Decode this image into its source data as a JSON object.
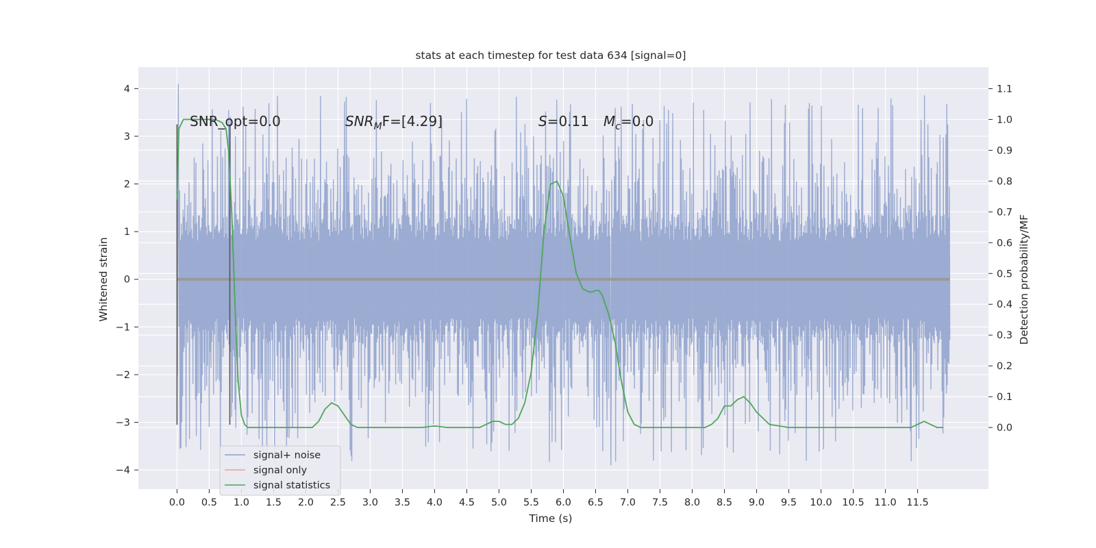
{
  "chart_data": {
    "type": "line",
    "title": "stats at each timestep for test data 634 [signal=0]",
    "xlabel": "Time (s)",
    "ylabel_left": "Whitened strain",
    "ylabel_right": "Detection probability/MF",
    "x_ticks": [
      "0.0",
      "0.5",
      "1.0",
      "1.5",
      "2.0",
      "2.5",
      "3.0",
      "3.5",
      "4.0",
      "4.5",
      "5.0",
      "5.5",
      "6.0",
      "6.5",
      "7.0",
      "7.5",
      "8.0",
      "8.5",
      "9.0",
      "9.5",
      "10.0",
      "10.5",
      "11.0",
      "11.5"
    ],
    "y_left_ticks": [
      "4",
      "3",
      "2",
      "1",
      "0",
      "−1",
      "−2",
      "−3",
      "−4"
    ],
    "y_right_ticks": [
      "1.1",
      "1.0",
      "0.9",
      "0.8",
      "0.7",
      "0.6",
      "0.5",
      "0.4",
      "0.3",
      "0.2",
      "0.1",
      "0.0"
    ],
    "xlim": [
      -0.6,
      12.6
    ],
    "ylim_left": [
      -4.4,
      4.45
    ],
    "ylim_right": [
      -0.2,
      1.17
    ],
    "grid": true,
    "legend_position": "lower-left",
    "legend": [
      "signal+ noise",
      "signal only",
      "signal statistics"
    ],
    "colors": {
      "axes_bg": "#eaeaf2",
      "grid": "#ffffff",
      "noise": "#8da0cb",
      "signal_only": "#e8a38a",
      "statistics": "#4ea55a",
      "markers": "#555555"
    },
    "annotations": {
      "snr_opt": "SNR_opt=0.0",
      "snr_mf_sym": "SNR",
      "snr_mf_sub": "M",
      "snr_mf_rest": "F=[4.29]",
      "s_sym": "S",
      "s_rest": "=0.11",
      "mc_sym": "M",
      "mc_sub": "c",
      "mc_rest": "=0.0"
    },
    "markers_x": [
      0.0,
      0.82
    ],
    "signal_only": {
      "x": [
        0.0,
        12.0
      ],
      "y": [
        0.0,
        0.0
      ]
    },
    "signal_noise": {
      "t_start": 0.0,
      "t_end": 12.0,
      "core_amplitude": 1.35,
      "typical_peak": 2.6,
      "max": 4.1,
      "min": -3.9
    },
    "detection_statistics": {
      "x": [
        0.0,
        0.03,
        0.1,
        0.2,
        0.3,
        0.4,
        0.5,
        0.6,
        0.7,
        0.76,
        0.8,
        0.85,
        0.9,
        0.95,
        1.0,
        1.05,
        1.1,
        1.2,
        1.4,
        1.6,
        1.8,
        2.0,
        2.1,
        2.2,
        2.3,
        2.4,
        2.5,
        2.6,
        2.7,
        2.8,
        3.0,
        3.5,
        3.8,
        4.0,
        4.2,
        4.5,
        4.7,
        4.8,
        4.9,
        5.0,
        5.1,
        5.2,
        5.3,
        5.4,
        5.5,
        5.6,
        5.7,
        5.8,
        5.9,
        6.0,
        6.1,
        6.2,
        6.3,
        6.4,
        6.45,
        6.5,
        6.55,
        6.6,
        6.7,
        6.8,
        6.9,
        7.0,
        7.1,
        7.2,
        7.5,
        8.0,
        8.2,
        8.3,
        8.4,
        8.5,
        8.55,
        8.6,
        8.7,
        8.8,
        8.9,
        9.0,
        9.2,
        9.5,
        10.0,
        10.5,
        11.0,
        11.4,
        11.5,
        11.6,
        11.7,
        11.8,
        11.9
      ],
      "y": [
        0.74,
        0.97,
        1.0,
        1.0,
        1.0,
        1.0,
        1.0,
        1.0,
        0.99,
        0.97,
        0.9,
        0.7,
        0.4,
        0.15,
        0.04,
        0.01,
        0.0,
        0.0,
        0.0,
        0.0,
        0.0,
        0.0,
        0.0,
        0.02,
        0.06,
        0.08,
        0.07,
        0.04,
        0.01,
        0.0,
        0.0,
        0.0,
        0.0,
        0.005,
        0.0,
        0.0,
        0.0,
        0.01,
        0.02,
        0.02,
        0.01,
        0.01,
        0.03,
        0.08,
        0.18,
        0.37,
        0.64,
        0.79,
        0.8,
        0.75,
        0.62,
        0.5,
        0.45,
        0.44,
        0.44,
        0.445,
        0.445,
        0.43,
        0.37,
        0.28,
        0.15,
        0.05,
        0.01,
        0.0,
        0.0,
        0.0,
        0.0,
        0.01,
        0.03,
        0.07,
        0.07,
        0.07,
        0.09,
        0.1,
        0.08,
        0.05,
        0.01,
        0.0,
        0.0,
        0.0,
        0.0,
        0.0,
        0.01,
        0.02,
        0.01,
        0.0,
        0.0
      ]
    }
  }
}
